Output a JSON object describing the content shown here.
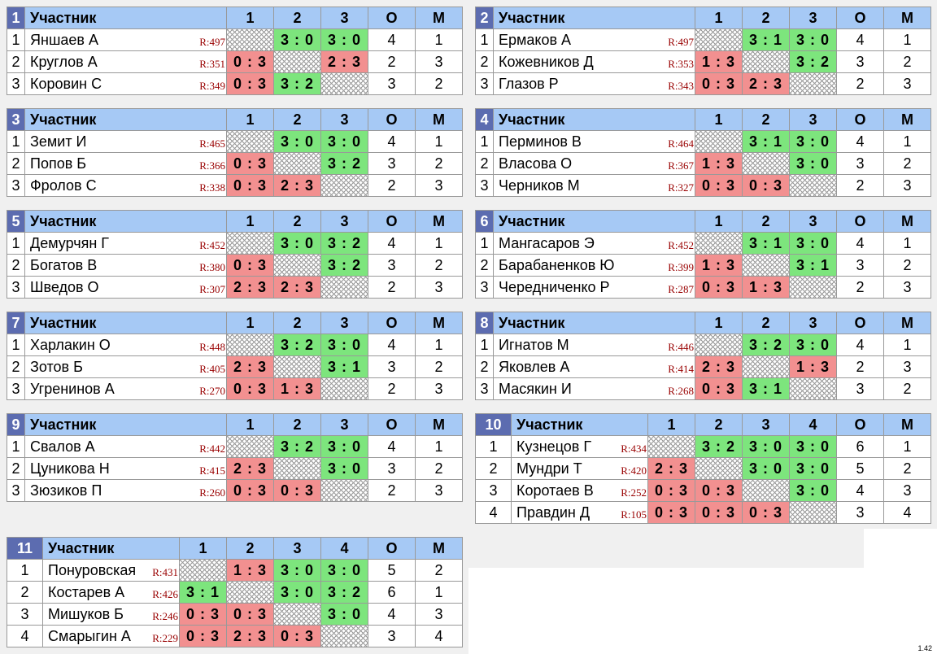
{
  "header": {
    "participant": "Участник",
    "o": "О",
    "m": "М"
  },
  "version": "1.42",
  "groups": [
    {
      "num": "1",
      "cols": [
        "1",
        "2",
        "3"
      ],
      "rows": [
        {
          "place": "1",
          "name": "Яншаев А",
          "rating": "R:497",
          "scores": [
            "",
            "3 : 0",
            "3 : 0"
          ],
          "o": "4",
          "m": "1"
        },
        {
          "place": "2",
          "name": "Круглов А",
          "rating": "R:351",
          "scores": [
            "0 : 3",
            "",
            "2 : 3"
          ],
          "o": "2",
          "m": "3"
        },
        {
          "place": "3",
          "name": "Коровин С",
          "rating": "R:349",
          "scores": [
            "0 : 3",
            "3 : 2",
            ""
          ],
          "o": "3",
          "m": "2"
        }
      ]
    },
    {
      "num": "2",
      "cols": [
        "1",
        "2",
        "3"
      ],
      "rows": [
        {
          "place": "1",
          "name": "Ермаков А",
          "rating": "R:497",
          "scores": [
            "",
            "3 : 1",
            "3 : 0"
          ],
          "o": "4",
          "m": "1"
        },
        {
          "place": "2",
          "name": "Кожевников Д",
          "rating": "R:353",
          "scores": [
            "1 : 3",
            "",
            "3 : 2"
          ],
          "o": "3",
          "m": "2"
        },
        {
          "place": "3",
          "name": "Глазов Р",
          "rating": "R:343",
          "scores": [
            "0 : 3",
            "2 : 3",
            ""
          ],
          "o": "2",
          "m": "3"
        }
      ]
    },
    {
      "num": "3",
      "cols": [
        "1",
        "2",
        "3"
      ],
      "rows": [
        {
          "place": "1",
          "name": "Земит И",
          "rating": "R:465",
          "scores": [
            "",
            "3 : 0",
            "3 : 0"
          ],
          "o": "4",
          "m": "1"
        },
        {
          "place": "2",
          "name": "Попов Б",
          "rating": "R:366",
          "scores": [
            "0 : 3",
            "",
            "3 : 2"
          ],
          "o": "3",
          "m": "2"
        },
        {
          "place": "3",
          "name": "Фролов С",
          "rating": "R:338",
          "scores": [
            "0 : 3",
            "2 : 3",
            ""
          ],
          "o": "2",
          "m": "3"
        }
      ]
    },
    {
      "num": "4",
      "cols": [
        "1",
        "2",
        "3"
      ],
      "rows": [
        {
          "place": "1",
          "name": "Перминов В",
          "rating": "R:464",
          "scores": [
            "",
            "3 : 1",
            "3 : 0"
          ],
          "o": "4",
          "m": "1"
        },
        {
          "place": "2",
          "name": "Власова О",
          "rating": "R:367",
          "scores": [
            "1 : 3",
            "",
            "3 : 0"
          ],
          "o": "3",
          "m": "2"
        },
        {
          "place": "3",
          "name": "Черников М",
          "rating": "R:327",
          "scores": [
            "0 : 3",
            "0 : 3",
            ""
          ],
          "o": "2",
          "m": "3"
        }
      ]
    },
    {
      "num": "5",
      "cols": [
        "1",
        "2",
        "3"
      ],
      "rows": [
        {
          "place": "1",
          "name": "Демурчян Г",
          "rating": "R:452",
          "scores": [
            "",
            "3 : 0",
            "3 : 2"
          ],
          "o": "4",
          "m": "1"
        },
        {
          "place": "2",
          "name": "Богатов В",
          "rating": "R:380",
          "scores": [
            "0 : 3",
            "",
            "3 : 2"
          ],
          "o": "3",
          "m": "2"
        },
        {
          "place": "3",
          "name": "Шведов О",
          "rating": "R:307",
          "scores": [
            "2 : 3",
            "2 : 3",
            ""
          ],
          "o": "2",
          "m": "3"
        }
      ]
    },
    {
      "num": "6",
      "cols": [
        "1",
        "2",
        "3"
      ],
      "rows": [
        {
          "place": "1",
          "name": "Мангасаров Э",
          "rating": "R:452",
          "scores": [
            "",
            "3 : 1",
            "3 : 0"
          ],
          "o": "4",
          "m": "1"
        },
        {
          "place": "2",
          "name": "Барабаненков Ю",
          "rating": "R:399",
          "scores": [
            "1 : 3",
            "",
            "3 : 1"
          ],
          "o": "3",
          "m": "2"
        },
        {
          "place": "3",
          "name": "Чередниченко Р",
          "rating": "R:287",
          "scores": [
            "0 : 3",
            "1 : 3",
            ""
          ],
          "o": "2",
          "m": "3"
        }
      ]
    },
    {
      "num": "7",
      "cols": [
        "1",
        "2",
        "3"
      ],
      "rows": [
        {
          "place": "1",
          "name": "Харлакин О",
          "rating": "R:448",
          "scores": [
            "",
            "3 : 2",
            "3 : 0"
          ],
          "o": "4",
          "m": "1"
        },
        {
          "place": "2",
          "name": "Зотов Б",
          "rating": "R:405",
          "scores": [
            "2 : 3",
            "",
            "3 : 1"
          ],
          "o": "3",
          "m": "2"
        },
        {
          "place": "3",
          "name": "Угренинов А",
          "rating": "R:270",
          "scores": [
            "0 : 3",
            "1 : 3",
            ""
          ],
          "o": "2",
          "m": "3"
        }
      ]
    },
    {
      "num": "8",
      "cols": [
        "1",
        "2",
        "3"
      ],
      "rows": [
        {
          "place": "1",
          "name": "Игнатов М",
          "rating": "R:446",
          "scores": [
            "",
            "3 : 2",
            "3 : 0"
          ],
          "o": "4",
          "m": "1"
        },
        {
          "place": "2",
          "name": "Яковлев А",
          "rating": "R:414",
          "scores": [
            "2 : 3",
            "",
            "1 : 3"
          ],
          "o": "2",
          "m": "3"
        },
        {
          "place": "3",
          "name": "Масякин И",
          "rating": "R:268",
          "scores": [
            "0 : 3",
            "3 : 1",
            ""
          ],
          "o": "3",
          "m": "2"
        }
      ]
    },
    {
      "num": "9",
      "cols": [
        "1",
        "2",
        "3"
      ],
      "rows": [
        {
          "place": "1",
          "name": "Свалов А",
          "rating": "R:442",
          "scores": [
            "",
            "3 : 2",
            "3 : 0"
          ],
          "o": "4",
          "m": "1"
        },
        {
          "place": "2",
          "name": "Цуникова Н",
          "rating": "R:415",
          "scores": [
            "2 : 3",
            "",
            "3 : 0"
          ],
          "o": "3",
          "m": "2"
        },
        {
          "place": "3",
          "name": "Зюзиков П",
          "rating": "R:260",
          "scores": [
            "0 : 3",
            "0 : 3",
            ""
          ],
          "o": "2",
          "m": "3"
        }
      ]
    },
    {
      "num": "10",
      "cols": [
        "1",
        "2",
        "3",
        "4"
      ],
      "rows": [
        {
          "place": "1",
          "name": "Кузнецов Г",
          "rating": "R:434",
          "scores": [
            "",
            "3 : 2",
            "3 : 0",
            "3 : 0"
          ],
          "o": "6",
          "m": "1"
        },
        {
          "place": "2",
          "name": "Мундри Т",
          "rating": "R:420",
          "scores": [
            "2 : 3",
            "",
            "3 : 0",
            "3 : 0"
          ],
          "o": "5",
          "m": "2"
        },
        {
          "place": "3",
          "name": "Коротаев В",
          "rating": "R:252",
          "scores": [
            "0 : 3",
            "0 : 3",
            "",
            "3 : 0"
          ],
          "o": "4",
          "m": "3"
        },
        {
          "place": "4",
          "name": "Правдин Д",
          "rating": "R:105",
          "scores": [
            "0 : 3",
            "0 : 3",
            "0 : 3",
            ""
          ],
          "o": "3",
          "m": "4"
        }
      ]
    },
    {
      "num": "11",
      "cols": [
        "1",
        "2",
        "3",
        "4"
      ],
      "rows": [
        {
          "place": "1",
          "name": "Понуровская",
          "rating": "R:431",
          "scores": [
            "",
            "1 : 3",
            "3 : 0",
            "3 : 0"
          ],
          "o": "5",
          "m": "2"
        },
        {
          "place": "2",
          "name": "Костарев А",
          "rating": "R:426",
          "scores": [
            "3 : 1",
            "",
            "3 : 0",
            "3 : 2"
          ],
          "o": "6",
          "m": "1"
        },
        {
          "place": "3",
          "name": "Мишуков Б",
          "rating": "R:246",
          "scores": [
            "0 : 3",
            "0 : 3",
            "",
            "3 : 0"
          ],
          "o": "4",
          "m": "3"
        },
        {
          "place": "4",
          "name": "Смарыгин А",
          "rating": "R:229",
          "scores": [
            "0 : 3",
            "2 : 3",
            "0 : 3",
            ""
          ],
          "o": "3",
          "m": "4"
        }
      ]
    }
  ]
}
